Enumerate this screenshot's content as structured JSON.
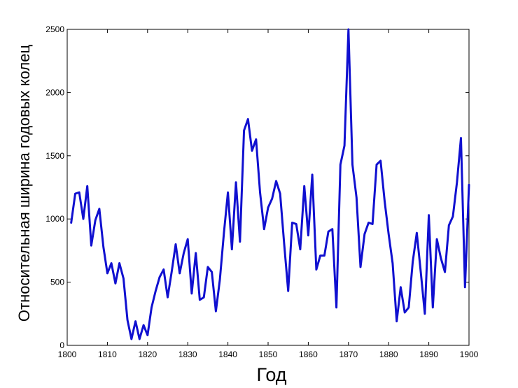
{
  "chart_data": {
    "type": "line",
    "title": "",
    "xlabel": "Год",
    "ylabel": "Относительная ширина годовых колец",
    "xlim": [
      1800,
      1900
    ],
    "ylim": [
      0,
      2500
    ],
    "xticks": [
      "1800",
      "1810",
      "1820",
      "1830",
      "1840",
      "1850",
      "1860",
      "1870",
      "1880",
      "1890",
      "1900"
    ],
    "yticks": [
      "0",
      "500",
      "1000",
      "1500",
      "2000",
      "2500"
    ],
    "grid": false,
    "legend": "none",
    "line_color": "#1010d0",
    "series": [
      {
        "x": [
          1801,
          1802,
          1803,
          1804,
          1805,
          1806,
          1807,
          1808,
          1809,
          1810,
          1811,
          1812,
          1813,
          1814,
          1815,
          1816,
          1817,
          1818,
          1819,
          1820,
          1821,
          1822,
          1823,
          1824,
          1825,
          1826,
          1827,
          1828,
          1829,
          1830,
          1831,
          1832,
          1833,
          1834,
          1835,
          1836,
          1837,
          1838,
          1839,
          1840,
          1841,
          1842,
          1843,
          1844,
          1845,
          1846,
          1847,
          1848,
          1849,
          1850,
          1851,
          1852,
          1853,
          1854,
          1855,
          1856,
          1857,
          1858,
          1859,
          1860,
          1861,
          1862,
          1863,
          1864,
          1865,
          1866,
          1867,
          1868,
          1869,
          1870,
          1871,
          1872,
          1873,
          1874,
          1875,
          1876,
          1877,
          1878,
          1879,
          1880,
          1881,
          1882,
          1883,
          1884,
          1885,
          1886,
          1887,
          1888,
          1889,
          1890,
          1891,
          1892,
          1893,
          1894,
          1895,
          1896,
          1897,
          1898,
          1899,
          1900
        ],
        "values": [
          970,
          1200,
          1210,
          1000,
          1260,
          790,
          990,
          1080,
          780,
          570,
          650,
          490,
          650,
          530,
          200,
          50,
          190,
          50,
          160,
          80,
          300,
          430,
          540,
          600,
          380,
          580,
          800,
          570,
          730,
          840,
          410,
          730,
          360,
          380,
          620,
          580,
          270,
          520,
          890,
          1210,
          760,
          1290,
          820,
          1700,
          1790,
          1540,
          1630,
          1210,
          920,
          1090,
          1160,
          1300,
          1200,
          800,
          430,
          970,
          960,
          760,
          1260,
          870,
          1350,
          600,
          710,
          710,
          900,
          920,
          300,
          1430,
          1580,
          2500,
          1430,
          1170,
          620,
          880,
          970,
          960,
          1430,
          1460,
          1140,
          880,
          650,
          190,
          460,
          260,
          300,
          660,
          890,
          580,
          250,
          1030,
          300,
          840,
          690,
          580,
          950,
          1020,
          1290,
          1640,
          460,
          1270
        ]
      }
    ]
  }
}
